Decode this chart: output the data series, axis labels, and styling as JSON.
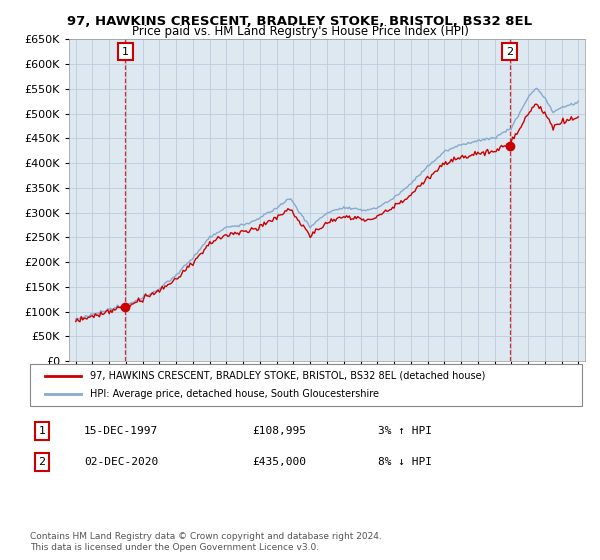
{
  "title": "97, HAWKINS CRESCENT, BRADLEY STOKE, BRISTOL, BS32 8EL",
  "subtitle": "Price paid vs. HM Land Registry's House Price Index (HPI)",
  "legend_line1": "97, HAWKINS CRESCENT, BRADLEY STOKE, BRISTOL, BS32 8EL (detached house)",
  "legend_line2": "HPI: Average price, detached house, South Gloucestershire",
  "annotation1_num": "1",
  "annotation1_date": "15-DEC-1997",
  "annotation1_price": "£108,995",
  "annotation1_hpi": "3% ↑ HPI",
  "annotation2_num": "2",
  "annotation2_date": "02-DEC-2020",
  "annotation2_price": "£435,000",
  "annotation2_hpi": "8% ↓ HPI",
  "footer": "Contains HM Land Registry data © Crown copyright and database right 2024.\nThis data is licensed under the Open Government Licence v3.0.",
  "sale1_x": 1997.96,
  "sale1_y": 108995,
  "sale2_x": 2020.92,
  "sale2_y": 435000,
  "line_color_red": "#cc0000",
  "line_color_blue": "#88aacc",
  "dot_color": "#cc0000",
  "annotation_box_color": "#cc0000",
  "grid_color": "#bbccdd",
  "bg_color": "#ffffff",
  "plot_bg_color": "#dde8f0",
  "ylim": [
    0,
    650000
  ],
  "yticks": [
    0,
    50000,
    100000,
    150000,
    200000,
    250000,
    300000,
    350000,
    400000,
    450000,
    500000,
    550000,
    600000,
    650000
  ],
  "xlim_start": 1994.6,
  "xlim_end": 2025.4
}
